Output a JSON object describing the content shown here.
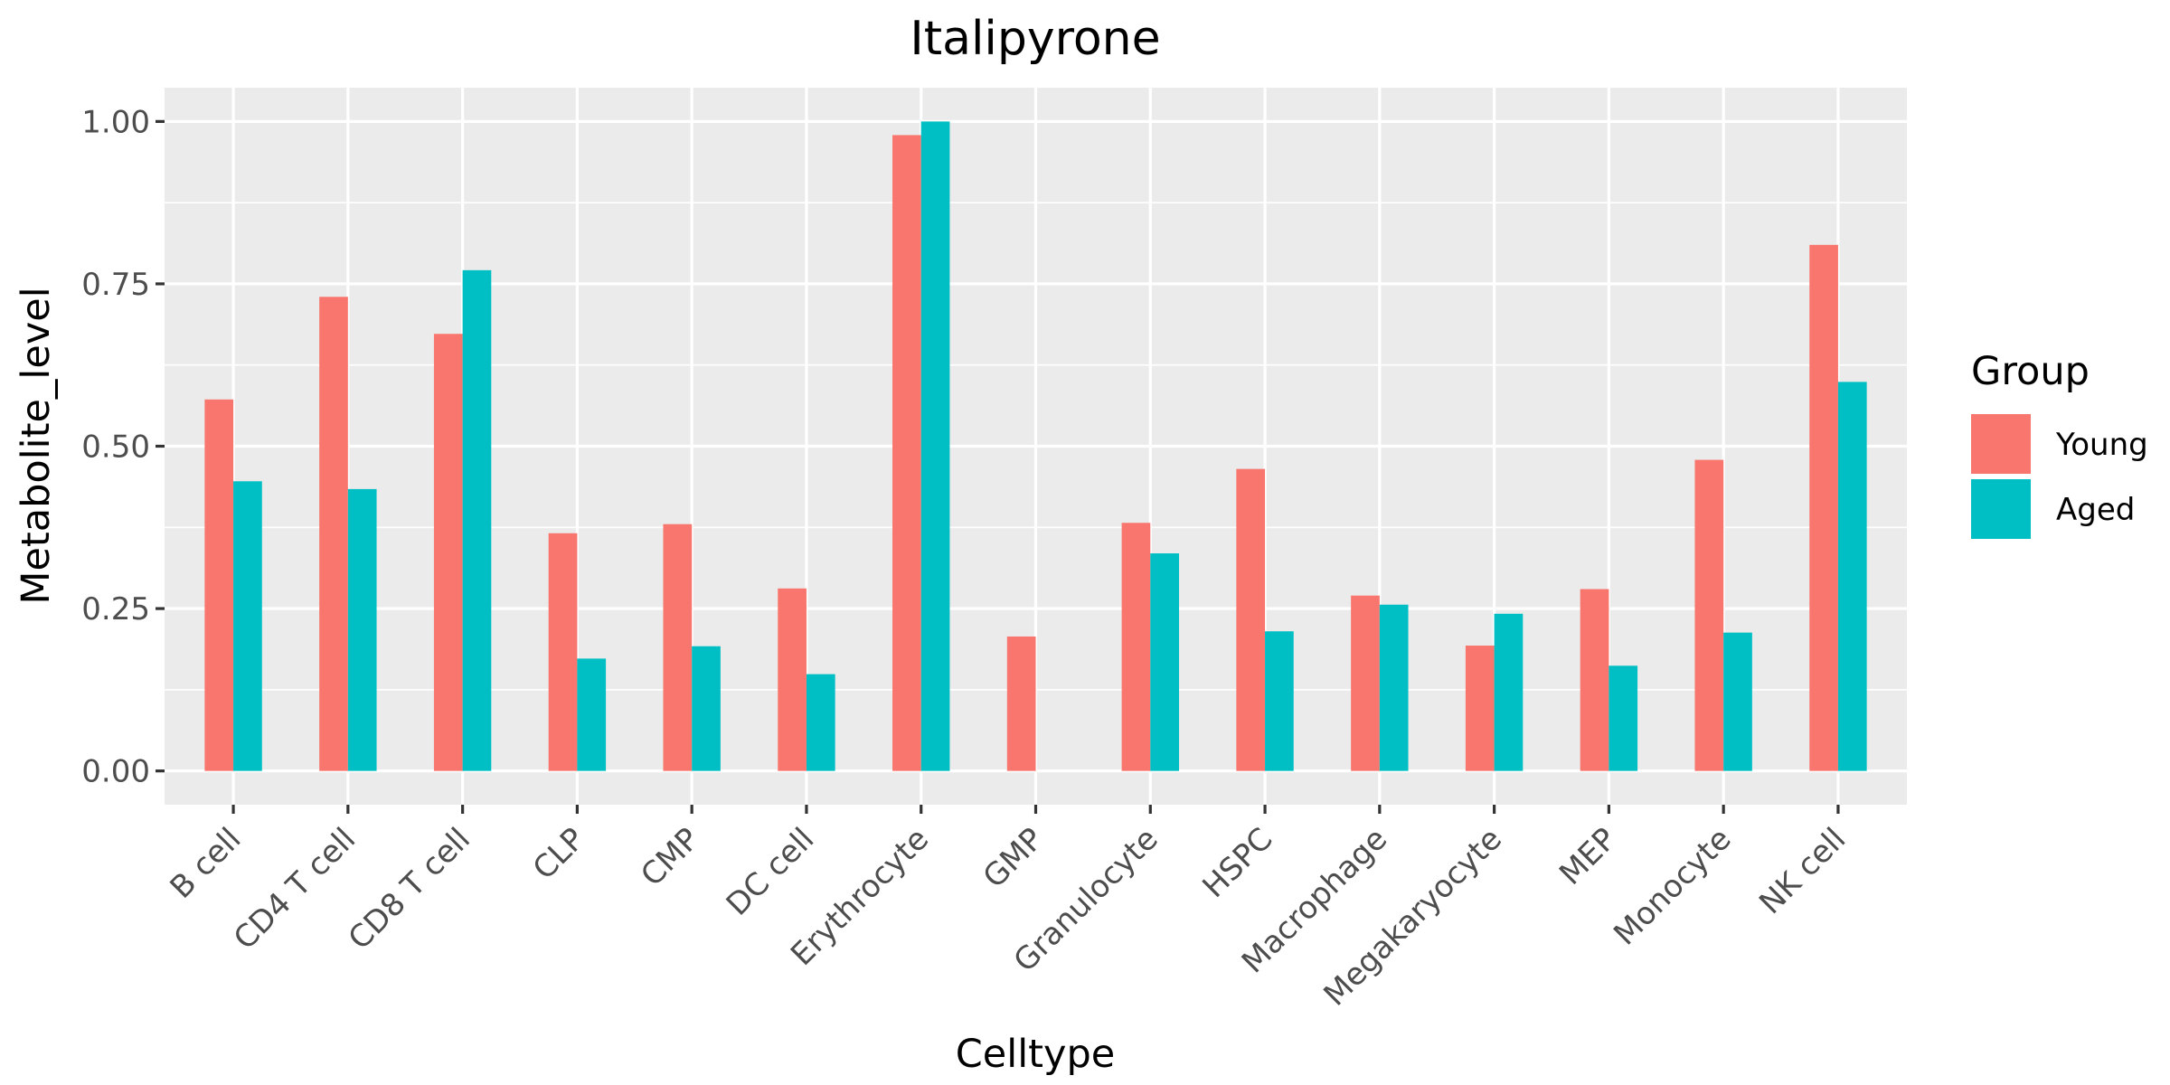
{
  "chart_data": {
    "type": "bar",
    "title": "Italipyrone",
    "xlabel": "Celltype",
    "ylabel": "Metabolite_level",
    "categories": [
      "B cell",
      "CD4 T cell",
      "CD8 T cell",
      "CLP",
      "CMP",
      "DC cell",
      "Erythrocyte",
      "GMP",
      "Granulocyte",
      "HSPC",
      "Macrophage",
      "Megakaryocyte",
      "MEP",
      "Monocyte",
      "NK cell"
    ],
    "series": [
      {
        "name": "Young",
        "color": "#F8766D",
        "values": [
          0.572,
          0.73,
          0.673,
          0.366,
          0.38,
          0.281,
          0.979,
          0.207,
          0.382,
          0.465,
          0.27,
          0.193,
          0.28,
          0.479,
          0.81
        ]
      },
      {
        "name": "Aged",
        "color": "#00BFC4",
        "values": [
          0.446,
          0.434,
          0.771,
          0.173,
          0.192,
          0.149,
          1.0,
          null,
          0.335,
          0.215,
          0.256,
          0.242,
          0.162,
          0.213,
          0.599
        ]
      }
    ],
    "ylim": [
      -0.052,
      1.052
    ],
    "yticks": [
      0.0,
      0.25,
      0.5,
      0.75,
      1.0
    ],
    "ytick_labels": [
      "0.00",
      "0.25",
      "0.50",
      "0.75",
      "1.00"
    ],
    "grid": true,
    "legend": {
      "title": "Group",
      "position": "right"
    }
  }
}
